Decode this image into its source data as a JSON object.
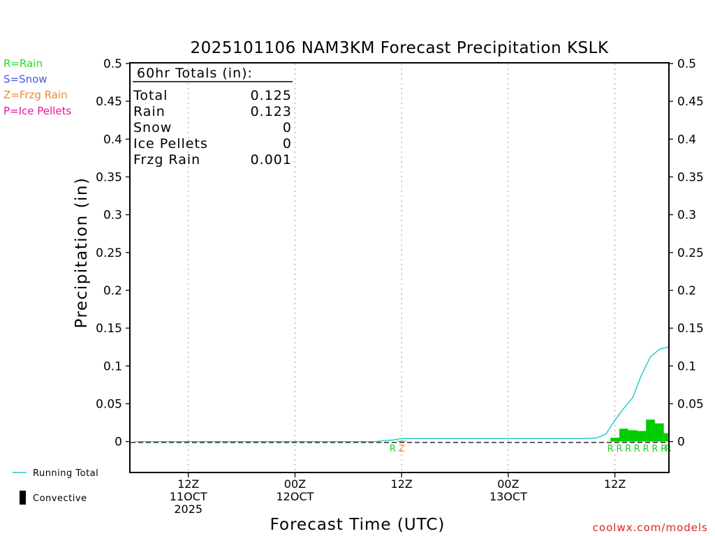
{
  "chart_data": {
    "type": "bar",
    "title": "2025101106 NAM3KM Forecast Precipitation KSLK",
    "xlabel": "Forecast Time (UTC)",
    "ylabel": "Precipitation (in)",
    "ylim": [
      -0.04,
      0.5
    ],
    "xlim_hours": [
      -0.5,
      60
    ],
    "yticks": [
      "0",
      "0.05",
      "0.1",
      "0.15",
      "0.2",
      "0.25",
      "0.3",
      "0.35",
      "0.4",
      "0.45",
      "0.5"
    ],
    "ytick_values": [
      0,
      0.05,
      0.1,
      0.15,
      0.2,
      0.25,
      0.3,
      0.35,
      0.4,
      0.45,
      0.5
    ],
    "xticks": [
      {
        "hour": 6,
        "lines": [
          "12Z",
          "11OCT",
          "2025"
        ]
      },
      {
        "hour": 18,
        "lines": [
          "00Z",
          "12OCT"
        ]
      },
      {
        "hour": 30,
        "lines": [
          "12Z"
        ]
      },
      {
        "hour": 42,
        "lines": [
          "00Z",
          "13OCT"
        ]
      },
      {
        "hour": 54,
        "lines": [
          "12Z"
        ]
      }
    ],
    "legend": {
      "placement": "left",
      "ptype": [
        {
          "label": "R=Rain",
          "color": "#22dd22"
        },
        {
          "label": "S=Snow",
          "color": "#4a55e8"
        },
        {
          "label": "Z=Frzg Rain",
          "color": "#ee8833"
        },
        {
          "label": "P=Ice Pellets",
          "color": "#ee1199"
        }
      ],
      "series": [
        {
          "label": "Running Total",
          "color": "#1ec8c8"
        },
        {
          "label": "Convective",
          "color": "#000000"
        }
      ]
    },
    "totals": {
      "heading": "60hr Totals (in):",
      "rows": [
        {
          "label": "Total",
          "value": "0.125"
        },
        {
          "label": "Rain",
          "value": "0.123"
        },
        {
          "label": "Snow",
          "value": "0"
        },
        {
          "label": "Ice Pellets",
          "value": "0"
        },
        {
          "label": "Frzg Rain",
          "value": "0.001"
        }
      ]
    },
    "series": [
      {
        "name": "Hourly Precipitation",
        "color": "#00cc00",
        "bars": [
          {
            "hour": 30,
            "value": 0.001
          },
          {
            "hour": 54,
            "value": 0.005
          },
          {
            "hour": 55,
            "value": 0.017
          },
          {
            "hour": 56,
            "value": 0.015
          },
          {
            "hour": 57,
            "value": 0.014
          },
          {
            "hour": 58,
            "value": 0.029
          },
          {
            "hour": 59,
            "value": 0.024
          },
          {
            "hour": 60,
            "value": 0.011
          }
        ]
      },
      {
        "name": "Running Total",
        "color": "#1ec8c8",
        "x": [
          0,
          27,
          28,
          29,
          30,
          31,
          44,
          51,
          52,
          53,
          54,
          55,
          56,
          57,
          58,
          59,
          60
        ],
        "values": [
          0,
          0,
          0.001,
          0.002,
          0.004,
          0.004,
          0.004,
          0.004,
          0.005,
          0.01,
          0.028,
          0.044,
          0.058,
          0.088,
          0.112,
          0.122,
          0.125
        ]
      }
    ],
    "ptype_markers": [
      {
        "hour": 29,
        "code": "R",
        "color": "#22cc22"
      },
      {
        "hour": 30,
        "code": "Z",
        "color": "#ee8833"
      },
      {
        "hour": 53.5,
        "code": "R",
        "color": "#22cc22"
      },
      {
        "hour": 54.5,
        "code": "R",
        "color": "#22cc22"
      },
      {
        "hour": 55.5,
        "code": "R",
        "color": "#22cc22"
      },
      {
        "hour": 56.5,
        "code": "R",
        "color": "#22cc22"
      },
      {
        "hour": 57.5,
        "code": "R",
        "color": "#22cc22"
      },
      {
        "hour": 58.5,
        "code": "R",
        "color": "#22cc22"
      },
      {
        "hour": 59.5,
        "code": "R",
        "color": "#22cc22"
      },
      {
        "hour": 60,
        "code": "R",
        "color": "#22cc22"
      }
    ],
    "credit": "coolwx.com/models",
    "credit_color": "#dd2222"
  }
}
